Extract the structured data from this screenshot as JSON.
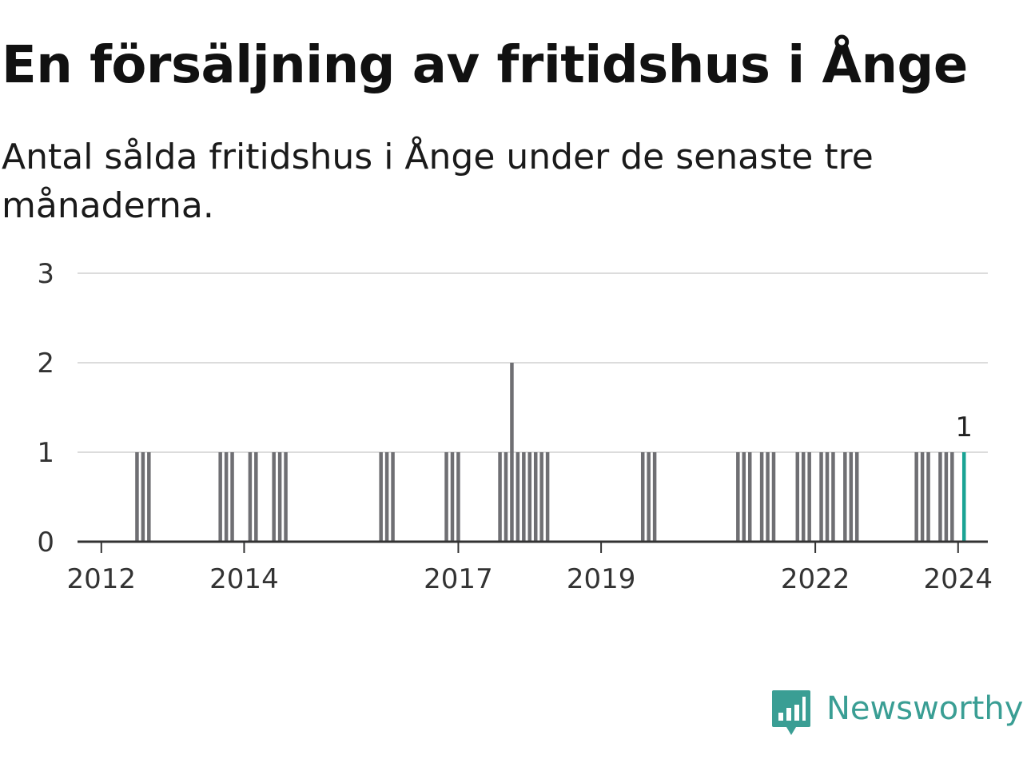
{
  "title": "En försäljning av fritidshus i Ånge",
  "subtitle": "Antal sålda fritidshus i Ånge under de senaste tre månaderna.",
  "brand": {
    "name": "Newsworthy",
    "icon": "newsworthy-logo-icon"
  },
  "colors": {
    "bar": "#6f6f73",
    "highlight": "#1aa394",
    "grid": "#dcdcdc",
    "axis": "#333333",
    "brand": "#3a9e94"
  },
  "chart_data": {
    "type": "bar",
    "title": "En försäljning av fritidshus i Ånge",
    "subtitle": "Antal sålda fritidshus i Ånge under de senaste tre månaderna.",
    "xlabel": "",
    "ylabel": "",
    "ylim": [
      0,
      3
    ],
    "yticks": [
      0,
      1,
      2,
      3
    ],
    "xlim": [
      "2011-09",
      "2024-06"
    ],
    "xticks": [
      "2012",
      "2014",
      "2017",
      "2019",
      "2022",
      "2024"
    ],
    "grid": true,
    "highlight_label": "1",
    "bars": [
      {
        "x": "2012-07",
        "value": 1
      },
      {
        "x": "2012-08",
        "value": 1
      },
      {
        "x": "2012-09",
        "value": 1
      },
      {
        "x": "2013-09",
        "value": 1
      },
      {
        "x": "2013-10",
        "value": 1
      },
      {
        "x": "2013-11",
        "value": 1
      },
      {
        "x": "2014-02",
        "value": 1
      },
      {
        "x": "2014-03",
        "value": 1
      },
      {
        "x": "2014-06",
        "value": 1
      },
      {
        "x": "2014-07",
        "value": 1
      },
      {
        "x": "2014-08",
        "value": 1
      },
      {
        "x": "2015-12",
        "value": 1
      },
      {
        "x": "2016-01",
        "value": 1
      },
      {
        "x": "2016-02",
        "value": 1
      },
      {
        "x": "2016-11",
        "value": 1
      },
      {
        "x": "2016-12",
        "value": 1
      },
      {
        "x": "2017-01",
        "value": 1
      },
      {
        "x": "2017-08",
        "value": 1
      },
      {
        "x": "2017-09",
        "value": 1
      },
      {
        "x": "2017-10",
        "value": 2
      },
      {
        "x": "2017-11",
        "value": 1
      },
      {
        "x": "2017-12",
        "value": 1
      },
      {
        "x": "2018-01",
        "value": 1
      },
      {
        "x": "2018-02",
        "value": 1
      },
      {
        "x": "2018-03",
        "value": 1
      },
      {
        "x": "2018-04",
        "value": 1
      },
      {
        "x": "2019-08",
        "value": 1
      },
      {
        "x": "2019-09",
        "value": 1
      },
      {
        "x": "2019-10",
        "value": 1
      },
      {
        "x": "2020-12",
        "value": 1
      },
      {
        "x": "2021-01",
        "value": 1
      },
      {
        "x": "2021-02",
        "value": 1
      },
      {
        "x": "2021-04",
        "value": 1
      },
      {
        "x": "2021-05",
        "value": 1
      },
      {
        "x": "2021-06",
        "value": 1
      },
      {
        "x": "2021-10",
        "value": 1
      },
      {
        "x": "2021-11",
        "value": 1
      },
      {
        "x": "2021-12",
        "value": 1
      },
      {
        "x": "2022-02",
        "value": 1
      },
      {
        "x": "2022-03",
        "value": 1
      },
      {
        "x": "2022-04",
        "value": 1
      },
      {
        "x": "2022-06",
        "value": 1
      },
      {
        "x": "2022-07",
        "value": 1
      },
      {
        "x": "2022-08",
        "value": 1
      },
      {
        "x": "2023-06",
        "value": 1
      },
      {
        "x": "2023-07",
        "value": 1
      },
      {
        "x": "2023-08",
        "value": 1
      },
      {
        "x": "2023-10",
        "value": 1
      },
      {
        "x": "2023-11",
        "value": 1
      },
      {
        "x": "2023-12",
        "value": 1
      },
      {
        "x": "2024-02",
        "value": 1,
        "highlight": true
      }
    ]
  }
}
